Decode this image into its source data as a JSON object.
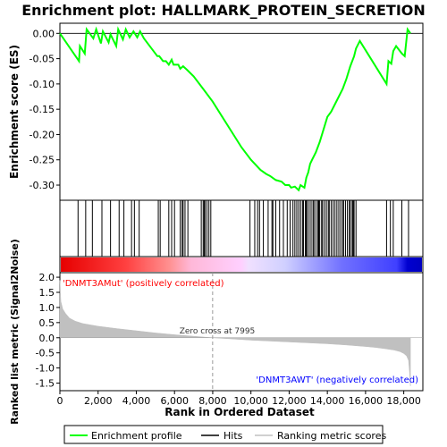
{
  "chart_data": {
    "type": "line",
    "title": "Enrichment plot: HALLMARK_PROTEIN_SECRETION",
    "top_panel": {
      "ylabel": "Enrichment score (ES)",
      "ylim": [
        -0.33,
        0.02
      ],
      "yticks": [
        0.0,
        -0.05,
        -0.1,
        -0.15,
        -0.2,
        -0.25,
        -0.3
      ],
      "ytick_labels": [
        "0.00",
        "-0.05",
        "-0.10",
        "-0.15",
        "-0.20",
        "-0.25",
        "-0.30"
      ],
      "series": [
        {
          "name": "Enrichment profile",
          "color": "#00ff00",
          "x": [
            0,
            1000,
            1050,
            1300,
            1400,
            1750,
            1900,
            2150,
            2250,
            2550,
            2650,
            2950,
            3050,
            3300,
            3450,
            3650,
            3850,
            4050,
            4200,
            4400,
            5100,
            5200,
            5400,
            5550,
            5700,
            5850,
            5950,
            6200,
            6300,
            6450,
            6650,
            7000,
            7500,
            8000,
            8500,
            9000,
            9500,
            10000,
            10500,
            10800,
            11000,
            11300,
            11600,
            11800,
            12000,
            12100,
            12300,
            12500,
            12600,
            12800,
            12900,
            13000,
            13100,
            13200,
            13400,
            13600,
            13800,
            14000,
            14200,
            14400,
            14600,
            14800,
            15000,
            15200,
            15400,
            15500,
            15700,
            17100,
            17200,
            17350,
            17450,
            17600,
            17900,
            18050,
            18200,
            18350
          ],
          "y": [
            0.0,
            -0.055,
            -0.025,
            -0.04,
            0.008,
            -0.01,
            0.008,
            -0.02,
            0.004,
            -0.018,
            -0.002,
            -0.025,
            0.008,
            -0.012,
            0.008,
            -0.008,
            0.004,
            -0.008,
            0.004,
            -0.01,
            -0.045,
            -0.045,
            -0.055,
            -0.055,
            -0.062,
            -0.052,
            -0.062,
            -0.062,
            -0.07,
            -0.065,
            -0.072,
            -0.085,
            -0.11,
            -0.135,
            -0.165,
            -0.195,
            -0.225,
            -0.25,
            -0.27,
            -0.278,
            -0.282,
            -0.29,
            -0.293,
            -0.3,
            -0.3,
            -0.305,
            -0.303,
            -0.31,
            -0.3,
            -0.305,
            -0.285,
            -0.275,
            -0.258,
            -0.25,
            -0.235,
            -0.215,
            -0.19,
            -0.165,
            -0.155,
            -0.14,
            -0.125,
            -0.11,
            -0.09,
            -0.065,
            -0.045,
            -0.03,
            -0.015,
            -0.1,
            -0.055,
            -0.06,
            -0.035,
            -0.025,
            -0.04,
            -0.045,
            0.008,
            0.0
          ]
        }
      ]
    },
    "hits_panel": {
      "series_name": "Hits",
      "hit_positions": [
        950,
        1350,
        1700,
        2200,
        2650,
        3100,
        3350,
        3750,
        3900,
        4150,
        5150,
        5250,
        5700,
        5850,
        6000,
        6300,
        6400,
        6450,
        6550,
        6700,
        7400,
        7500,
        7550,
        7600,
        7700,
        7800,
        7900,
        9950,
        10200,
        10350,
        10450,
        10650,
        10900,
        11100,
        11150,
        11300,
        11500,
        11700,
        11900,
        12050,
        12200,
        12300,
        12400,
        12500,
        12600,
        12700,
        12750,
        12850,
        12900,
        12950,
        13050,
        13150,
        13250,
        13300,
        13400,
        13500,
        13550,
        13600,
        13700,
        13750,
        13850,
        13950,
        14050,
        14100,
        14200,
        14300,
        14400,
        14500,
        14600,
        14700,
        14800,
        14850,
        14950,
        15050,
        15150,
        15200,
        15300,
        15350,
        15400,
        15500,
        17100,
        17300,
        17450,
        17900,
        18250
      ]
    },
    "bottom_panel": {
      "ylabel": "Ranked list metric (Signal2Noise)",
      "xlabel": "Rank in Ordered Dataset",
      "xlim": [
        0,
        19000
      ],
      "xticks": [
        0,
        2000,
        4000,
        6000,
        8000,
        10000,
        12000,
        14000,
        16000,
        18000
      ],
      "xtick_labels": [
        "0",
        "2,000",
        "4,000",
        "6,000",
        "8,000",
        "10,000",
        "12,000",
        "14,000",
        "16,000",
        "18,000"
      ],
      "ylim": [
        -1.75,
        2.15
      ],
      "yticks": [
        2.0,
        1.5,
        1.0,
        0.5,
        0.0,
        -0.5,
        -1.0,
        -1.5
      ],
      "ytick_labels": [
        "2.0",
        "1.5",
        "1.0",
        "0.5",
        "0.0",
        "-0.5",
        "-1.0",
        "-1.5"
      ],
      "series": [
        {
          "name": "Ranking metric scores",
          "x": [
            0,
            50,
            150,
            300,
            500,
            800,
            1200,
            2000,
            3000,
            4000,
            5000,
            6000,
            7000,
            7995,
            9000,
            10000,
            11000,
            12000,
            13000,
            14000,
            15000,
            16000,
            16500,
            17000,
            17500,
            17800,
            18000,
            18150,
            18250,
            18300,
            18350
          ],
          "y": [
            1.9,
            1.2,
            0.95,
            0.8,
            0.65,
            0.55,
            0.47,
            0.38,
            0.3,
            0.23,
            0.16,
            0.1,
            0.05,
            0.0,
            -0.04,
            -0.08,
            -0.11,
            -0.14,
            -0.17,
            -0.2,
            -0.24,
            -0.29,
            -0.32,
            -0.36,
            -0.41,
            -0.46,
            -0.52,
            -0.6,
            -0.75,
            -1.1,
            -1.6
          ]
        }
      ],
      "zero_cross_label": "Zero cross at 7995",
      "zero_cross_rank": 7995,
      "pos_label": "'DNMT3AMut' (positively correlated)",
      "neg_label": "'DNMT3AWT' (negatively correlated)"
    },
    "legend": {
      "placement": "bottom",
      "items": [
        {
          "label": "Enrichment profile",
          "color": "#00ff00"
        },
        {
          "label": "Hits",
          "color": "#000000"
        },
        {
          "label": "Ranking metric scores",
          "color": "#c0c0c0"
        }
      ]
    },
    "colors": {
      "profile": "#00ff00",
      "pos_label": "#ff0000",
      "neg_label": "#0000ff",
      "metric_fill": "#c0c0c0"
    }
  }
}
